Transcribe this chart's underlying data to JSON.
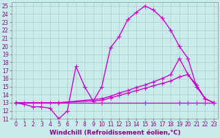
{
  "background_color": "#c8ecec",
  "grid_color": "#b0c8c8",
  "line_color": "#cc00cc",
  "marker": "+",
  "markersize": 4,
  "linewidth": 1.0,
  "xlim": [
    -0.5,
    23.5
  ],
  "ylim": [
    11,
    25.5
  ],
  "xticks": [
    0,
    1,
    2,
    3,
    4,
    5,
    6,
    7,
    8,
    9,
    10,
    11,
    12,
    13,
    14,
    15,
    16,
    17,
    18,
    19,
    20,
    21,
    22,
    23
  ],
  "yticks": [
    11,
    12,
    13,
    14,
    15,
    16,
    17,
    18,
    19,
    20,
    21,
    22,
    23,
    24,
    25
  ],
  "xlabel": "Windchill (Refroidissement éolien,°C)",
  "xlabel_fontsize": 6.5,
  "tick_fontsize": 5.5,
  "lines": [
    {
      "x": [
        0,
        1,
        2,
        3,
        4,
        5,
        6,
        7,
        8,
        9,
        10,
        11,
        12,
        13,
        14,
        15,
        16,
        17,
        18,
        19,
        20,
        21,
        22,
        23
      ],
      "y": [
        13,
        12.8,
        12.5,
        12.5,
        12.3,
        11,
        12.0,
        17.5,
        15.0,
        13.2,
        15.0,
        19.8,
        21.2,
        23.3,
        24.2,
        25.0,
        24.5,
        23.5,
        22.0,
        20.0,
        18.5,
        15.0,
        13.5,
        13.0
      ]
    },
    {
      "x": [
        0,
        1,
        2,
        3,
        4,
        5,
        10,
        15,
        19,
        20,
        21,
        22,
        23
      ],
      "y": [
        13,
        13,
        13,
        13,
        13,
        13,
        13,
        13,
        13,
        13,
        13,
        13,
        13
      ]
    },
    {
      "x": [
        0,
        5,
        10,
        11,
        12,
        13,
        14,
        15,
        16,
        17,
        18,
        19,
        20,
        21,
        22,
        23
      ],
      "y": [
        13,
        13,
        13.5,
        13.8,
        14.2,
        14.5,
        14.9,
        15.2,
        15.6,
        16.0,
        16.5,
        18.5,
        16.5,
        15.2,
        13.5,
        13.0
      ]
    },
    {
      "x": [
        0,
        5,
        10,
        11,
        12,
        13,
        14,
        15,
        16,
        17,
        18,
        19,
        20,
        21,
        22,
        23
      ],
      "y": [
        13,
        13,
        13.3,
        13.6,
        13.9,
        14.2,
        14.5,
        14.8,
        15.1,
        15.4,
        15.7,
        16.2,
        16.5,
        15.0,
        13.5,
        13.0
      ]
    }
  ]
}
